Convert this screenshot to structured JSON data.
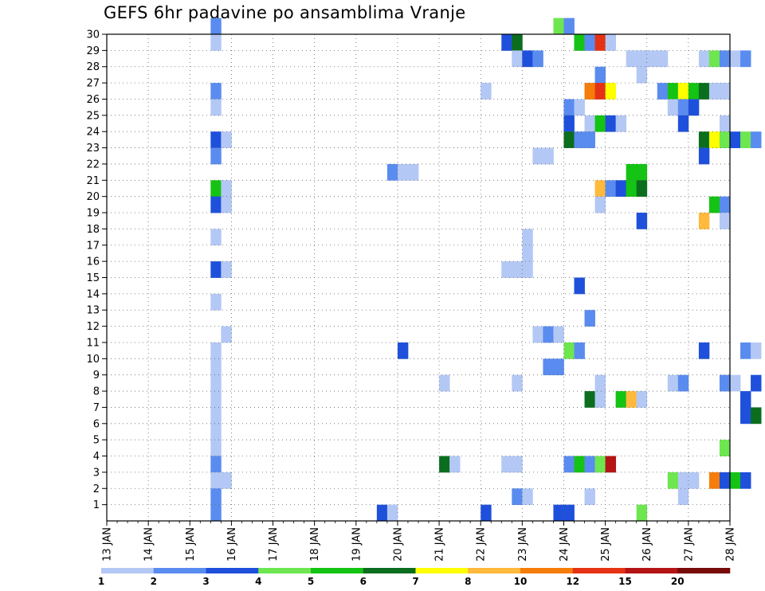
{
  "chart_data": {
    "type": "heatmap",
    "title": "GEFS 6hr padavine po ansamblima Vranje",
    "xlabel": "",
    "ylabel": "",
    "x_unit": "6-hour step",
    "x_range_days": [
      "13 JAN",
      "28 JAN"
    ],
    "x_tick_labels": [
      "13 JAN",
      "14 JAN",
      "15 JAN",
      "16 JAN",
      "17 JAN",
      "18 JAN",
      "19 JAN",
      "20 JAN",
      "21 JAN",
      "22 JAN",
      "23 JAN",
      "24 JAN",
      "25 JAN",
      "26 JAN",
      "27 JAN",
      "28 JAN"
    ],
    "y_tick_labels": [
      "1",
      "2",
      "3",
      "4",
      "5",
      "6",
      "7",
      "8",
      "9",
      "10",
      "11",
      "12",
      "13",
      "14",
      "15",
      "16",
      "17",
      "18",
      "19",
      "20",
      "21",
      "22",
      "23",
      "24",
      "25",
      "26",
      "27",
      "28",
      "29",
      "30"
    ],
    "ylim": [
      0,
      30
    ],
    "grid": true,
    "color_levels": [
      1,
      2,
      3,
      4,
      5,
      6,
      7,
      8,
      10,
      12,
      15,
      20
    ],
    "colorbar_labels": [
      "1",
      "2",
      "3",
      "4",
      "5",
      "6",
      "7",
      "8",
      "10",
      "12",
      "15",
      "20"
    ],
    "colorbar_colors": [
      "#b4c8f5",
      "#5a8cf0",
      "#1e50dc",
      "#6ee650",
      "#14c314",
      "#0a6e1e",
      "#ffff00",
      "#ffb93c",
      "#f57d0a",
      "#e63214",
      "#b41414",
      "#780a0a"
    ],
    "cells": [
      [
        15.5,
        30,
        1
      ],
      [
        15.5,
        29,
        0
      ],
      [
        15.5,
        26,
        1
      ],
      [
        15.5,
        25,
        0
      ],
      [
        15.5,
        23,
        2
      ],
      [
        15.75,
        23,
        0
      ],
      [
        15.5,
        22,
        1
      ],
      [
        15.5,
        20,
        4
      ],
      [
        15.75,
        20,
        0
      ],
      [
        15.5,
        19,
        2
      ],
      [
        15.75,
        19,
        0
      ],
      [
        15.5,
        17,
        0
      ],
      [
        15.5,
        15,
        2
      ],
      [
        15.75,
        15,
        0
      ],
      [
        15.5,
        13,
        0
      ],
      [
        15.75,
        11,
        0
      ],
      [
        15.5,
        10,
        0
      ],
      [
        15.5,
        9,
        0
      ],
      [
        15.5,
        8,
        0
      ],
      [
        15.5,
        7,
        0
      ],
      [
        15.5,
        6,
        0
      ],
      [
        15.5,
        5,
        0
      ],
      [
        15.5,
        4,
        0
      ],
      [
        15.5,
        3,
        1
      ],
      [
        15.5,
        2,
        0
      ],
      [
        15.75,
        2,
        0
      ],
      [
        15.5,
        1,
        1
      ],
      [
        15.5,
        0,
        1
      ],
      [
        19.75,
        21,
        1
      ],
      [
        20.0,
        21,
        0
      ],
      [
        20.25,
        21,
        0
      ],
      [
        20.0,
        10,
        2
      ],
      [
        19.5,
        0,
        2
      ],
      [
        19.75,
        0,
        0
      ],
      [
        21.0,
        8,
        0
      ],
      [
        21.0,
        3,
        5
      ],
      [
        21.25,
        3,
        0
      ],
      [
        22.0,
        26,
        0
      ],
      [
        22.0,
        0,
        2
      ],
      [
        22.5,
        29,
        2
      ],
      [
        22.75,
        29,
        5
      ],
      [
        22.75,
        28,
        0
      ],
      [
        23.0,
        28,
        2
      ],
      [
        23.25,
        28,
        1
      ],
      [
        22.5,
        15,
        0
      ],
      [
        22.75,
        15,
        0
      ],
      [
        23.0,
        15,
        0
      ],
      [
        23.0,
        16,
        0
      ],
      [
        22.75,
        8,
        0
      ],
      [
        22.5,
        3,
        0
      ],
      [
        22.75,
        3,
        0
      ],
      [
        22.75,
        1,
        1
      ],
      [
        23.0,
        1,
        0
      ],
      [
        23.0,
        17,
        0
      ],
      [
        23.25,
        22,
        0
      ],
      [
        23.5,
        22,
        0
      ],
      [
        23.25,
        11,
        0
      ],
      [
        23.5,
        11,
        1
      ],
      [
        23.75,
        11,
        0
      ],
      [
        23.5,
        9,
        1
      ],
      [
        23.75,
        9,
        1
      ],
      [
        23.75,
        30,
        3
      ],
      [
        24.0,
        30,
        1
      ],
      [
        24.25,
        29,
        4
      ],
      [
        24.5,
        29,
        1
      ],
      [
        24.75,
        29,
        9
      ],
      [
        25.0,
        29,
        0
      ],
      [
        24.75,
        27,
        1
      ],
      [
        24.5,
        26,
        8
      ],
      [
        24.75,
        26,
        9
      ],
      [
        25.0,
        26,
        6
      ],
      [
        24.0,
        25,
        1
      ],
      [
        24.25,
        25,
        0
      ],
      [
        24.0,
        24,
        2
      ],
      [
        24.5,
        24,
        0
      ],
      [
        24.75,
        24,
        4
      ],
      [
        25.0,
        24,
        2
      ],
      [
        25.25,
        24,
        0
      ],
      [
        24.0,
        23,
        5
      ],
      [
        24.25,
        23,
        1
      ],
      [
        24.5,
        23,
        1
      ],
      [
        24.75,
        20,
        7
      ],
      [
        25.0,
        20,
        1
      ],
      [
        24.75,
        19,
        0
      ],
      [
        24.25,
        14,
        2
      ],
      [
        24.5,
        12,
        1
      ],
      [
        24.0,
        10,
        3
      ],
      [
        24.25,
        10,
        1
      ],
      [
        24.75,
        8,
        0
      ],
      [
        24.5,
        7,
        5
      ],
      [
        24.75,
        7,
        0
      ],
      [
        24.0,
        3,
        1
      ],
      [
        24.25,
        3,
        4
      ],
      [
        24.5,
        3,
        1
      ],
      [
        24.75,
        3,
        3
      ],
      [
        25.0,
        3,
        10
      ],
      [
        24.5,
        1,
        0
      ],
      [
        23.75,
        0,
        2
      ],
      [
        24.0,
        0,
        2
      ],
      [
        25.5,
        28,
        0
      ],
      [
        25.75,
        28,
        0
      ],
      [
        26.0,
        28,
        0
      ],
      [
        26.25,
        28,
        0
      ],
      [
        25.75,
        27,
        0
      ],
      [
        25.5,
        21,
        4
      ],
      [
        25.75,
        21,
        4
      ],
      [
        25.25,
        20,
        2
      ],
      [
        25.5,
        20,
        4
      ],
      [
        25.75,
        20,
        5
      ],
      [
        25.75,
        18,
        2
      ],
      [
        25.25,
        7,
        4
      ],
      [
        25.5,
        7,
        7
      ],
      [
        25.75,
        7,
        0
      ],
      [
        25.75,
        0,
        3
      ],
      [
        26.25,
        26,
        1
      ],
      [
        26.5,
        26,
        4
      ],
      [
        26.75,
        26,
        6
      ],
      [
        27.0,
        26,
        4
      ],
      [
        27.25,
        26,
        5
      ],
      [
        27.5,
        26,
        0
      ],
      [
        27.75,
        26,
        0
      ],
      [
        26.5,
        25,
        0
      ],
      [
        26.75,
        25,
        1
      ],
      [
        27.0,
        25,
        2
      ],
      [
        26.75,
        24,
        2
      ],
      [
        26.5,
        8,
        0
      ],
      [
        26.75,
        8,
        1
      ],
      [
        26.5,
        2,
        3
      ],
      [
        26.75,
        2,
        0
      ],
      [
        27.0,
        2,
        0
      ],
      [
        26.75,
        1,
        0
      ],
      [
        27.25,
        28,
        0
      ],
      [
        27.5,
        28,
        3
      ],
      [
        27.75,
        28,
        1
      ],
      [
        28.0,
        28,
        0
      ],
      [
        28.25,
        28,
        1
      ],
      [
        27.75,
        24,
        0
      ],
      [
        27.25,
        23,
        5
      ],
      [
        27.5,
        23,
        6
      ],
      [
        27.75,
        23,
        3
      ],
      [
        28.0,
        23,
        2
      ],
      [
        28.25,
        23,
        3
      ],
      [
        28.5,
        23,
        1
      ],
      [
        27.25,
        22,
        2
      ],
      [
        27.5,
        19,
        4
      ],
      [
        27.75,
        19,
        1
      ],
      [
        27.25,
        18,
        7
      ],
      [
        27.75,
        18,
        0
      ],
      [
        27.25,
        10,
        2
      ],
      [
        28.25,
        10,
        1
      ],
      [
        28.5,
        10,
        0
      ],
      [
        27.75,
        8,
        1
      ],
      [
        28.0,
        8,
        0
      ],
      [
        28.5,
        8,
        2
      ],
      [
        28.25,
        7,
        2
      ],
      [
        28.25,
        6,
        2
      ],
      [
        28.5,
        6,
        5
      ],
      [
        27.75,
        4,
        3
      ],
      [
        27.5,
        2,
        8
      ],
      [
        27.75,
        2,
        2
      ],
      [
        28.0,
        2,
        4
      ],
      [
        28.25,
        2,
        2
      ]
    ]
  }
}
